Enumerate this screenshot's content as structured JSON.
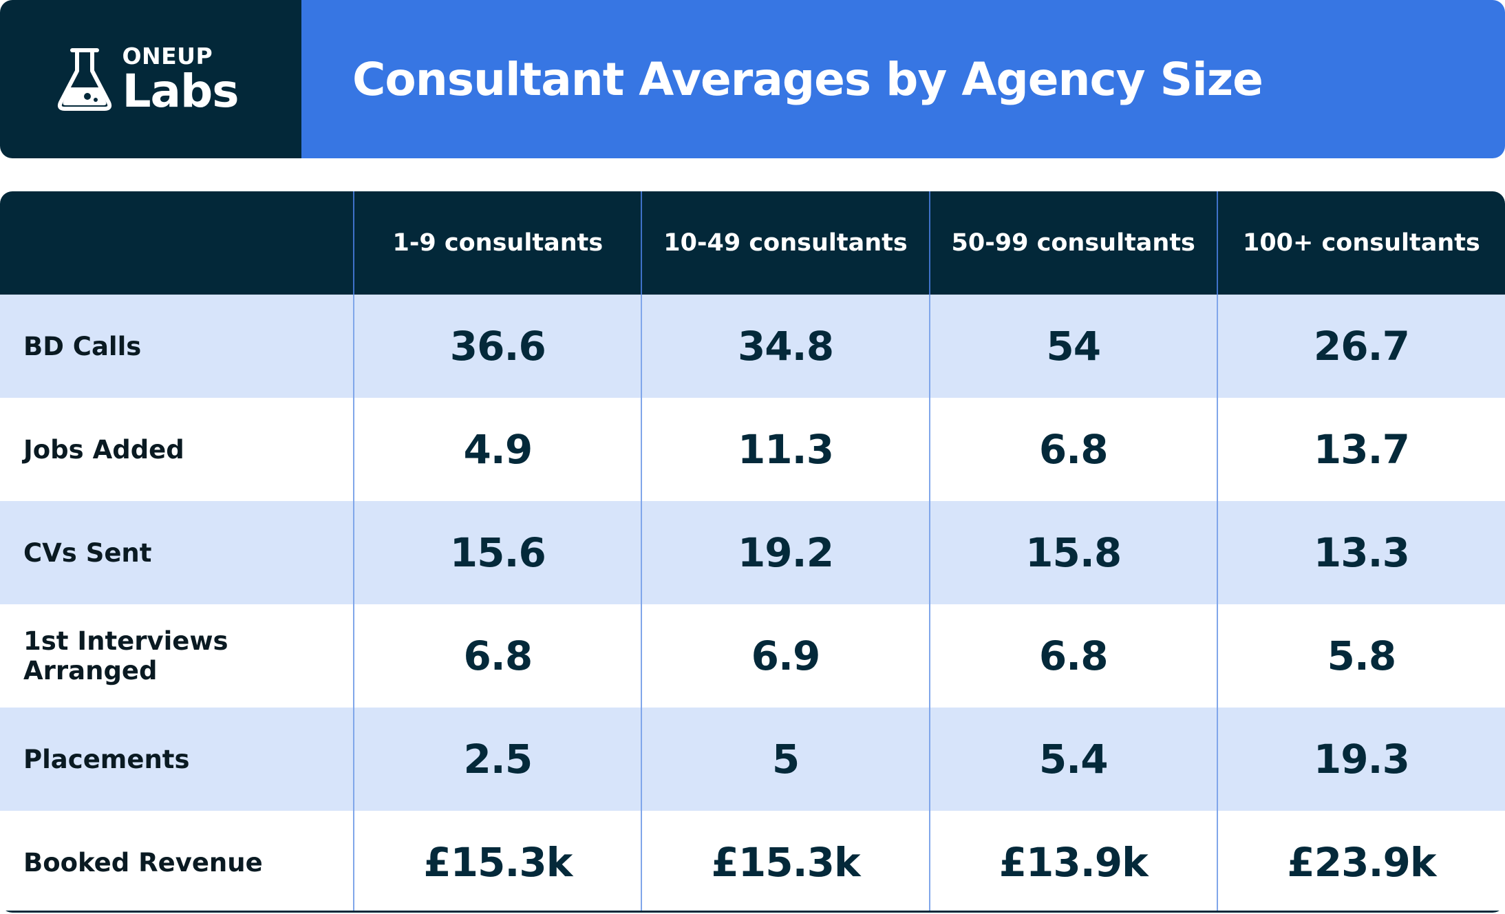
{
  "brand": {
    "top": "ONEUP",
    "bottom": "Labs"
  },
  "title": "Consultant Averages by Agency Size",
  "chart_data": {
    "type": "table",
    "title": "Consultant Averages by Agency Size",
    "columns": [
      "1-9 consultants",
      "10-49 consultants",
      "50-99 consultants",
      "100+ consultants"
    ],
    "rows": [
      {
        "label": "BD Calls",
        "values": [
          "36.6",
          "34.8",
          "54",
          "26.7"
        ]
      },
      {
        "label": "Jobs Added",
        "values": [
          "4.9",
          "11.3",
          "6.8",
          "13.7"
        ]
      },
      {
        "label": "CVs Sent",
        "values": [
          "15.6",
          "19.2",
          "15.8",
          "13.3"
        ]
      },
      {
        "label": "1st Interviews Arranged",
        "values": [
          "6.8",
          "6.9",
          "6.8",
          "5.8"
        ]
      },
      {
        "label": "Placements",
        "values": [
          "2.5",
          "5",
          "5.4",
          "19.3"
        ]
      },
      {
        "label": "Booked Revenue",
        "values": [
          "£15.3k",
          "£15.3k",
          "£13.9k",
          "£23.9k"
        ]
      }
    ]
  },
  "colors": {
    "dark_navy": "#032839",
    "accent_blue": "#3776e3",
    "row_shade": "#d7e4fa",
    "divider": "#80a6ea"
  },
  "icons": {
    "logo": "flask-icon"
  }
}
